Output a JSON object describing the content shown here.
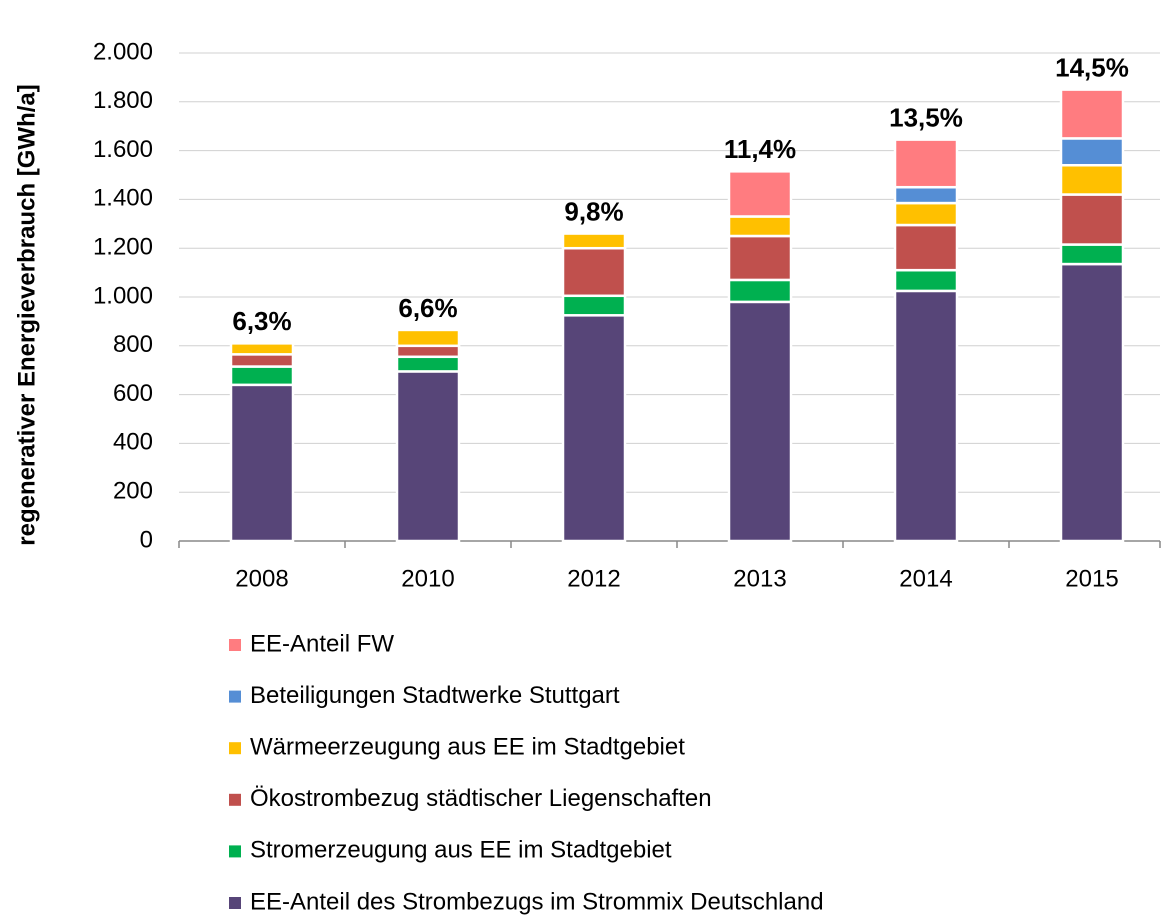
{
  "chart_data": {
    "type": "stacked_bar",
    "y_label": "regenerativer Energieverbrauch [GWh/a]",
    "categories": [
      "2008",
      "2010",
      "2012",
      "2013",
      "2014",
      "2015"
    ],
    "series": [
      {
        "name": "EE-Anteil des Strombezugs im Strommix Deutschland",
        "color": "#574578",
        "values": [
          640,
          695,
          925,
          980,
          1025,
          1135
        ]
      },
      {
        "name": "Stromerzeugung aus EE im Stadtgebiet",
        "color": "#00b050",
        "values": [
          75,
          60,
          80,
          90,
          85,
          80
        ]
      },
      {
        "name": "Ökostrombezug städtischer Liegenschaften",
        "color": "#c0504d",
        "values": [
          50,
          45,
          195,
          180,
          185,
          205
        ]
      },
      {
        "name": "Wärmeerzeugung aus EE im Stadtgebiet",
        "color": "#ffc000",
        "values": [
          45,
          65,
          60,
          80,
          90,
          120
        ]
      },
      {
        "name": "Beteiligungen Stadtwerke Stuttgart",
        "color": "#558ed5",
        "values": [
          null,
          null,
          null,
          null,
          65,
          110
        ]
      },
      {
        "name": "EE-Anteil FW",
        "color": "#ff7c80",
        "values": [
          null,
          null,
          null,
          185,
          195,
          200
        ]
      }
    ],
    "share_labels": [
      "6,3%",
      "6,6%",
      "9,8%",
      "11,4%",
      "13,5%",
      "14,5%"
    ],
    "ylim": [
      0,
      2000
    ],
    "yticks": [
      0,
      200,
      400,
      600,
      800,
      {
        "value": 1000,
        "label": "1.000"
      },
      {
        "value": 1200,
        "label": "1.200"
      },
      {
        "value": 1400,
        "label": "1.400"
      },
      {
        "value": 1600,
        "label": "1.600"
      },
      {
        "value": 1800,
        "label": "1.800"
      },
      {
        "value": 2000,
        "label": "2.000"
      }
    ],
    "grid": true,
    "legend": "bottom"
  }
}
